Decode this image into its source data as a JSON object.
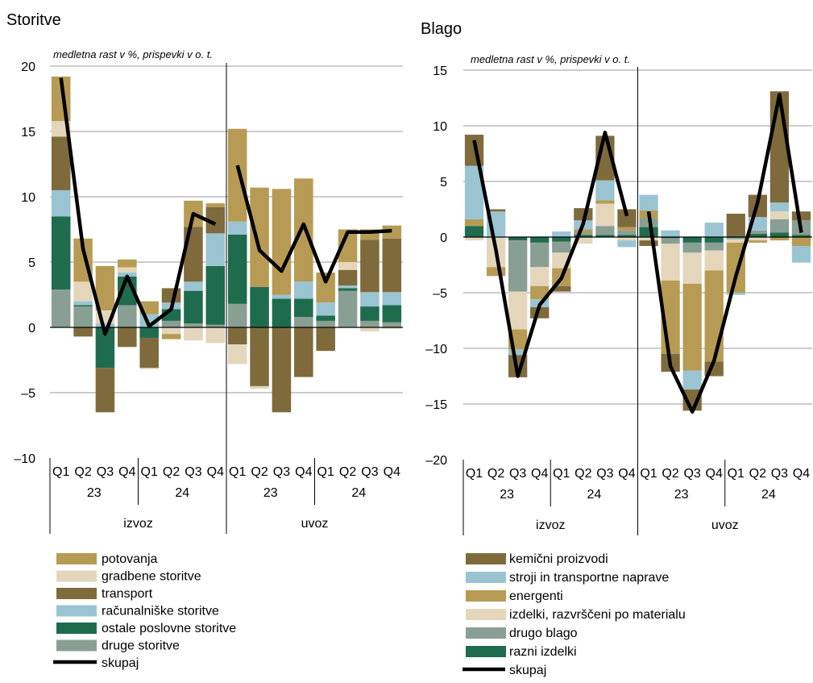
{
  "chart_data": [
    {
      "type": "bar",
      "title": "Storitve",
      "subtitle": "medletna rast v %, prispevki v o. t.",
      "ylim": [
        -10,
        20
      ],
      "yticks": [
        -10,
        -5,
        0,
        5,
        10,
        15,
        20
      ],
      "ytick_labels": [
        "–10",
        "–5",
        "0",
        "5",
        "10",
        "15",
        "20"
      ],
      "grid": true,
      "categories": [
        "Q1",
        "Q2",
        "Q3",
        "Q4",
        "Q1",
        "Q2",
        "Q3",
        "Q4",
        "Q1",
        "Q2",
        "Q3",
        "Q4",
        "Q1",
        "Q2",
        "Q3",
        "Q4"
      ],
      "year_labels": [
        "23",
        "24",
        "23",
        "24"
      ],
      "group_labels": [
        "izvoz",
        "uvoz"
      ],
      "series": [
        {
          "name": "druge storitve",
          "color": "#8a9f93",
          "values": [
            2.9,
            1.6,
            0,
            1.7,
            0,
            0.5,
            0.3,
            0.2,
            1.8,
            0,
            0,
            0.8,
            0.5,
            2.8,
            0.5,
            0.4
          ]
        },
        {
          "name": "ostale poslovne storitve",
          "color": "#1f6b4e",
          "values": [
            5.6,
            0.1,
            -3.1,
            2.2,
            -0.8,
            0.9,
            2.5,
            4.5,
            5.3,
            3.1,
            2.2,
            1.4,
            0.4,
            0.2,
            1.1,
            1.3
          ]
        },
        {
          "name": "računalniške storitve",
          "color": "#9bc4d2",
          "values": [
            2.0,
            0.3,
            0.3,
            0.3,
            1.0,
            0.5,
            0.7,
            2.5,
            1.0,
            0,
            0.3,
            1.3,
            1.0,
            0.2,
            1.1,
            1.0
          ]
        },
        {
          "name": "transport",
          "color": "#7f6a3c",
          "values": [
            4.1,
            -0.7,
            -3.4,
            -1.5,
            -2.3,
            1.1,
            4.2,
            2.0,
            -1.3,
            -4.5,
            -6.5,
            -3.8,
            -1.8,
            1.2,
            4.0,
            4.1
          ]
        },
        {
          "name": "gradbene storitve",
          "color": "#e3d6bb",
          "values": [
            1.2,
            1.5,
            1.0,
            0.4,
            -0.1,
            -0.5,
            -1.0,
            -1.2,
            -1.5,
            -0.2,
            0,
            0,
            0,
            0.6,
            -0.3,
            -0.1
          ]
        },
        {
          "name": "potovanja",
          "color": "#b79b54",
          "values": [
            3.4,
            3.3,
            3.4,
            0.6,
            1.0,
            -0.4,
            2.0,
            0.3,
            7.1,
            7.6,
            8.1,
            7.9,
            2.3,
            2.5,
            0.8,
            1.0
          ]
        }
      ],
      "total": {
        "name": "skupaj",
        "values": [
          19.1,
          6.0,
          -0.5,
          3.9,
          0.1,
          1.4,
          8.7,
          7.9,
          12.4,
          5.9,
          4.3,
          7.9,
          3.5,
          7.3,
          7.3,
          7.4
        ]
      }
    },
    {
      "type": "bar",
      "title": "Blago",
      "subtitle": "medletna rast v %, prispevki v o. t.",
      "ylim": [
        -20,
        15
      ],
      "yticks": [
        -20,
        -15,
        -10,
        -5,
        0,
        5,
        10,
        15
      ],
      "ytick_labels": [
        "–20",
        "–15",
        "–10",
        "–5",
        "0",
        "5",
        "10",
        "15"
      ],
      "grid": true,
      "categories": [
        "Q1",
        "Q2",
        "Q3",
        "Q4",
        "Q1",
        "Q2",
        "Q3",
        "Q4",
        "Q1",
        "Q2",
        "Q3",
        "Q4",
        "Q1",
        "Q2",
        "Q3",
        "Q4"
      ],
      "year_labels": [
        "23",
        "24",
        "23",
        "24"
      ],
      "group_labels": [
        "izvoz",
        "uvoz"
      ],
      "series": [
        {
          "name": "razni izdelki",
          "color": "#1f6b4e",
          "values": [
            1.0,
            0,
            -0.3,
            -0.5,
            -0.4,
            0.2,
            0.2,
            0.2,
            0.9,
            -0.1,
            -0.5,
            -0.5,
            0.1,
            0.3,
            0.4,
            0.2
          ]
        },
        {
          "name": "drugo blago",
          "color": "#8a9f93",
          "values": [
            0,
            0,
            -4.6,
            -2.2,
            -1.0,
            0.2,
            0.8,
            0.4,
            0.8,
            -0.5,
            -0.9,
            -0.7,
            -0.2,
            0.3,
            1.2,
            1.3
          ]
        },
        {
          "name": "izdelki, razvrščeni po materialu",
          "color": "#e3d6bb",
          "values": [
            -0.3,
            -2.7,
            -3.4,
            -1.7,
            -1.4,
            -0.6,
            2.0,
            -0.3,
            -0.3,
            -3.3,
            -2.8,
            -1.8,
            -0.3,
            -0.3,
            0.7,
            0
          ]
        },
        {
          "name": "energenti",
          "color": "#b79b54",
          "values": [
            0.6,
            -0.8,
            -1.8,
            -1.2,
            -1.6,
            0.3,
            0.3,
            0.3,
            0.7,
            -6.6,
            -7.8,
            -8.2,
            -4.5,
            -0.2,
            -0.3,
            -0.8
          ]
        },
        {
          "name": "stroji in transportne naprave",
          "color": "#9bc4d2",
          "values": [
            4.8,
            2.3,
            -0.5,
            -0.7,
            0.5,
            0.8,
            1.8,
            -0.6,
            1.4,
            0.6,
            -1.7,
            1.3,
            -0.2,
            1.2,
            0.8,
            -1.5
          ]
        },
        {
          "name": "kemični proizvodi",
          "color": "#7f6a3c",
          "values": [
            2.8,
            0.2,
            -2.0,
            -1.0,
            -0.5,
            1.1,
            4.0,
            1.6,
            -0.5,
            -1.6,
            -1.9,
            -1.3,
            2.0,
            2.0,
            10.0,
            0.8
          ]
        }
      ],
      "total": {
        "name": "skupaj",
        "values": [
          8.7,
          -1.2,
          -12.5,
          -6.1,
          -3.7,
          1.2,
          9.4,
          1.9,
          2.3,
          -11.6,
          -15.7,
          -11.1,
          -3.5,
          3.1,
          12.8,
          0.4
        ]
      }
    }
  ]
}
